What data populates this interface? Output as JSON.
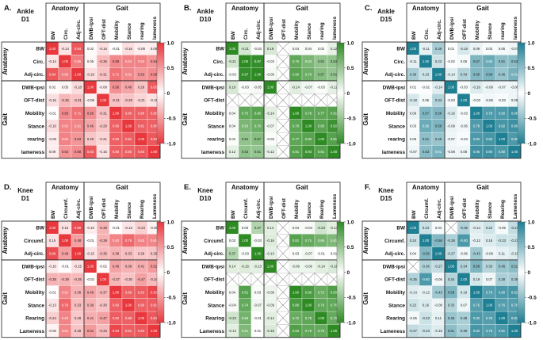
{
  "chart_data": [
    {
      "type": "heatmap",
      "panel_label": "A.",
      "title": [
        "Ankle",
        "D1"
      ],
      "palette": "red",
      "row_labels": [
        "BW",
        "Circ.",
        "Adj-circ.",
        "DWB-ipsi",
        "OFT-dist",
        "Mobility",
        "Stance",
        "rearing",
        "lameness"
      ],
      "col_labels": [
        "BW",
        "Circ.",
        "Adj-circ.",
        "DWB-ipsi",
        "OFT-dist",
        "Mobility",
        "Stance",
        "rearing",
        "lameness"
      ],
      "groups": [
        {
          "name": "Anatomy",
          "size": 3
        },
        {
          "name": "Gait",
          "size": 6
        }
      ],
      "matrix": [
        [
          1.0,
          -0.14,
          0.84,
          0.02,
          -0.16,
          -0.01,
          -0.16,
          -0.09,
          0.09
        ],
        [
          -0.14,
          1.0,
          0.65,
          0.05,
          -0.36,
          0.59,
          0.63,
          0.63,
          0.54
        ],
        [
          0.84,
          0.65,
          1.0,
          -0.18,
          -0.31,
          0.71,
          0.61,
          0.53,
          0.58
        ],
        [
          0.02,
          0.05,
          -0.18,
          1.0,
          -0.08,
          0.56,
          0.46,
          0.29,
          0.83
        ],
        [
          -0.16,
          -0.36,
          -0.31,
          -0.08,
          1.0,
          -0.31,
          -0.29,
          -0.21,
          -0.15
        ],
        [
          -0.01,
          0.59,
          0.71,
          0.56,
          -0.31,
          1.0,
          0.8,
          0.8,
          0.8
        ],
        [
          -0.16,
          0.63,
          0.61,
          0.46,
          -0.29,
          0.8,
          1.0,
          0.81,
          0.8
        ],
        [
          -0.09,
          0.63,
          0.53,
          0.29,
          -0.21,
          0.8,
          0.81,
          1.0,
          0.84
        ],
        [
          0.09,
          0.54,
          0.58,
          0.83,
          -0.15,
          0.8,
          0.8,
          0.84,
          1.0
        ]
      ],
      "colorbar": {
        "ticks": [
          1.0,
          0.5,
          0,
          -0.5,
          -1.0
        ],
        "tick_labels": [
          "1.0",
          "0.5",
          "0",
          "-0.5",
          "-1.0"
        ],
        "range": [
          -1.0,
          1.0
        ]
      }
    },
    {
      "type": "heatmap",
      "panel_label": "B.",
      "title": [
        "Ankle",
        "D10"
      ],
      "palette": "green",
      "row_labels": [
        "BW",
        "Circ.",
        "Adj-circ.",
        "DWB-ipsi",
        "OFT-dist",
        "Mobility",
        "Stance",
        "rearing",
        "lameness"
      ],
      "col_labels": [
        "BW",
        "Circ.",
        "Adj-circ.",
        "DWB-ipsi",
        "OFT-dist",
        "Mobility",
        "Stance",
        "rearing",
        "lameness"
      ],
      "groups": [
        {
          "name": "Anatomy",
          "size": 3
        },
        {
          "name": "Gait",
          "size": 6
        }
      ],
      "matrix": [
        [
          1.0,
          -0.21,
          -0.03,
          0.19,
          null,
          0.04,
          0.04,
          0.02,
          0.12
        ],
        [
          -0.21,
          1.0,
          0.97,
          -0.03,
          null,
          0.75,
          0.63,
          0.52,
          0.53
        ],
        [
          -0.03,
          0.97,
          1.0,
          -0.05,
          null,
          0.8,
          0.7,
          0.57,
          0.51
        ],
        [
          0.19,
          -0.03,
          -0.05,
          1.0,
          null,
          -0.14,
          -0.07,
          -0.03,
          -0.12
        ],
        [
          null,
          null,
          null,
          null,
          null,
          null,
          null,
          null,
          null
        ],
        [
          0.04,
          0.75,
          0.8,
          -0.14,
          null,
          1.0,
          0.78,
          0.77,
          0.81
        ],
        [
          0.04,
          0.63,
          0.7,
          -0.07,
          null,
          0.78,
          1.0,
          0.8,
          0.93
        ],
        [
          0.02,
          0.52,
          0.57,
          -0.03,
          null,
          0.77,
          0.8,
          1.0,
          0.81
        ],
        [
          0.12,
          0.53,
          0.51,
          -0.12,
          null,
          0.81,
          0.93,
          0.81,
          1.0
        ]
      ],
      "colorbar": {
        "ticks": [
          1.0,
          0.5,
          0,
          -0.5,
          -1.0
        ],
        "tick_labels": [
          "1.0",
          "0.5",
          "0",
          "-0.5",
          "-1.0"
        ],
        "range": [
          -1.0,
          1.0
        ]
      }
    },
    {
      "type": "heatmap",
      "panel_label": "C.",
      "title": [
        "Ankle",
        "D15"
      ],
      "palette": "teal",
      "row_labels": [
        "BW",
        "Circ.",
        "Adj-circ.",
        "DWB-ipsi",
        "OFT-dist",
        "Mobility",
        "Stance",
        "rearing",
        "lameness"
      ],
      "col_labels": [
        "BW",
        "Circ.",
        "Adj-circ.",
        "DWB-ipsi",
        "OFT-dist",
        "Mobility",
        "Stance",
        "rearing",
        "lameness"
      ],
      "groups": [
        {
          "name": "Anatomy",
          "size": 3
        },
        {
          "name": "Gait",
          "size": 6
        }
      ],
      "matrix": [
        [
          1.0,
          -0.11,
          0.39,
          0.01,
          -0.18,
          0.09,
          0.03,
          0.05,
          -0.07
        ],
        [
          -0.11,
          1.0,
          0.23,
          -0.02,
          0.05,
          0.57,
          0.66,
          0.51,
          0.53
        ],
        [
          0.39,
          0.23,
          1.0,
          -0.14,
          0.34,
          0.56,
          0.58,
          0.46,
          0.61
        ],
        [
          0.01,
          -0.02,
          -0.14,
          1.0,
          -0.03,
          -0.16,
          -0.09,
          -0.07,
          -0.08
        ],
        [
          -0.18,
          0.05,
          0.34,
          -0.03,
          1.0,
          -0.03,
          -0.06,
          -0.03,
          0.08
        ],
        [
          0.09,
          0.57,
          0.56,
          -0.16,
          -0.03,
          1.0,
          0.78,
          0.8,
          0.86
        ],
        [
          0.03,
          0.66,
          0.58,
          -0.09,
          -0.06,
          0.78,
          1.0,
          0.82,
          0.86
        ],
        [
          0.05,
          0.51,
          0.46,
          -0.07,
          -0.03,
          0.8,
          0.82,
          1.0,
          0.8
        ],
        [
          -0.07,
          0.53,
          0.61,
          -0.08,
          0.08,
          0.86,
          0.86,
          0.8,
          1.0
        ]
      ],
      "colorbar": {
        "ticks": [
          1.0,
          0.5,
          0,
          -0.5,
          -1.0
        ],
        "tick_labels": [
          "1.0",
          "0.5",
          "0",
          "-0.5",
          "-1.0"
        ],
        "range": [
          -1.0,
          1.0
        ]
      }
    },
    {
      "type": "heatmap",
      "panel_label": "D.",
      "title": [
        "Knee",
        "D1"
      ],
      "palette": "red",
      "row_labels": [
        "BW",
        "Circumf.",
        "Adj-circ.",
        "DWB-ipsi",
        "OFT-dist",
        "Mobility",
        "Stance",
        "Rearing",
        "Lameness"
      ],
      "col_labels": [
        "BW",
        "Circumf.",
        "Adj-circ.",
        "DWB-ipsi",
        "OFT-dist",
        "Mobility",
        "Stance",
        "Rearing",
        "Lameness"
      ],
      "groups": [
        {
          "name": "Anatomy",
          "size": 3
        },
        {
          "name": "Gait",
          "size": 6
        }
      ],
      "matrix": [
        [
          1.0,
          0.15,
          0.89,
          -0.1,
          -0.38,
          -0.01,
          -0.13,
          -0.24,
          -0.06
        ],
        [
          0.15,
          1.0,
          0.48,
          -0.01,
          -0.39,
          0.62,
          0.76,
          0.63,
          0.61
        ],
        [
          0.89,
          0.48,
          1.0,
          -0.15,
          -0.35,
          0.38,
          0.33,
          0.28,
          0.29
        ],
        [
          -0.1,
          -0.01,
          -0.15,
          1.0,
          -0.02,
          0.46,
          0.39,
          0.41,
          0.51
        ],
        [
          -0.38,
          -0.39,
          -0.35,
          -0.02,
          1.0,
          -0.37,
          -0.3,
          -0.47,
          -0.34
        ],
        [
          -0.01,
          0.62,
          0.38,
          0.46,
          -0.37,
          1.0,
          0.8,
          0.82,
          0.93
        ],
        [
          -0.13,
          0.76,
          0.33,
          0.39,
          -0.3,
          0.8,
          1.0,
          0.8,
          0.81
        ],
        [
          -0.24,
          0.63,
          0.28,
          0.41,
          -0.47,
          0.82,
          0.8,
          1.0,
          0.84
        ],
        [
          -0.06,
          0.61,
          0.29,
          0.51,
          -0.34,
          0.93,
          0.81,
          0.84,
          1.0
        ]
      ],
      "colorbar": {
        "ticks": [
          1.0,
          0.5,
          0,
          -0.5,
          -1.0
        ],
        "tick_labels": [
          "1.0",
          "0.5",
          "0",
          "-0.5",
          "-1.0"
        ],
        "range": [
          -1.0,
          1.0
        ]
      }
    },
    {
      "type": "heatmap",
      "panel_label": "E.",
      "title": [
        "Knee",
        "D10"
      ],
      "palette": "green",
      "row_labels": [
        "BW",
        "Circumf.",
        "Adj-circ.",
        "DWB-ipsi",
        "OFT-dist",
        "Mobility",
        "Stance",
        "Rearing",
        "Lameness"
      ],
      "col_labels": [
        "BW",
        "Circumf.",
        "Adj-circ.",
        "DWB-ipsi",
        "OFT-dist",
        "Mobility",
        "Stance",
        "Rearing",
        "Lameness"
      ],
      "groups": [
        {
          "name": "Anatomy",
          "size": 3
        },
        {
          "name": "Gait",
          "size": 6
        }
      ],
      "matrix": [
        [
          1.0,
          0.03,
          0.37,
          0.14,
          null,
          0.04,
          -0.04,
          -0.23,
          -0.14
        ],
        [
          0.03,
          1.0,
          -0.03,
          -0.16,
          null,
          0.81,
          0.74,
          0.66,
          0.61
        ],
        [
          0.37,
          -0.03,
          1.0,
          -0.13,
          null,
          0.03,
          -0.07,
          -0.01,
          0.01
        ],
        [
          0.14,
          -0.16,
          -0.13,
          1.0,
          null,
          -0.09,
          -0.09,
          -0.14,
          -0.18
        ],
        [
          null,
          null,
          null,
          null,
          null,
          null,
          null,
          null,
          null
        ],
        [
          0.04,
          0.81,
          0.03,
          -0.09,
          null,
          1.0,
          0.86,
          0.72,
          0.83
        ],
        [
          -0.04,
          0.74,
          -0.07,
          -0.09,
          null,
          0.86,
          1.0,
          0.76,
          0.76
        ],
        [
          -0.23,
          0.66,
          -0.01,
          -0.14,
          null,
          0.72,
          0.76,
          1.0,
          0.73
        ],
        [
          -0.14,
          0.61,
          0.01,
          -0.18,
          null,
          0.83,
          0.76,
          0.73,
          1.0
        ]
      ],
      "colorbar": {
        "ticks": [
          1.0,
          0.5,
          0,
          -0.5,
          -1.0
        ],
        "tick_labels": [
          "1.0",
          "0.5",
          "0",
          "-0.5",
          "-1.0"
        ],
        "range": [
          -1.0,
          1.0
        ]
      }
    },
    {
      "type": "heatmap",
      "panel_label": "F.",
      "title": [
        "Knee",
        "D15"
      ],
      "palette": "teal",
      "row_labels": [
        "BW",
        "Circumf.",
        "Adj-circ.",
        "DWB-ipsi",
        "OFT-dist",
        "Mobility",
        "Stance",
        "Rearing",
        "Lameness"
      ],
      "col_labels": [
        "BW",
        "Circumf.",
        "Adj-circ.",
        "DWB-ipsi",
        "OFT-dist",
        "Mobility",
        "Stance",
        "Rearing",
        "Lameness"
      ],
      "groups": [
        {
          "name": "Anatomy",
          "size": 3
        },
        {
          "name": "Gait",
          "size": 6
        }
      ],
      "matrix": [
        [
          1.0,
          0.24,
          0.04,
          null,
          -0.35,
          -0.14,
          0.22,
          -0.05,
          -0.27
        ],
        [
          0.24,
          1.0,
          -0.56,
          -0.36,
          -0.8,
          -0.12,
          0.16,
          -0.23,
          -0.23
        ],
        [
          0.04,
          -0.56,
          1.0,
          -0.27,
          -0.06,
          -0.43,
          -0.08,
          0.11,
          -0.15
        ],
        [
          null,
          -0.36,
          -0.27,
          1.0,
          0.34,
          0.58,
          0.33,
          0.46,
          0.51
        ],
        [
          -0.35,
          -0.8,
          -0.06,
          0.34,
          1.0,
          0.19,
          0.07,
          0.38,
          0.39
        ],
        [
          -0.14,
          -0.12,
          -0.43,
          0.58,
          0.19,
          1.0,
          0.76,
          0.8,
          0.82
        ],
        [
          0.22,
          0.16,
          -0.08,
          0.33,
          0.07,
          0.76,
          1.0,
          0.76,
          0.76
        ],
        [
          -0.05,
          -0.23,
          0.11,
          0.46,
          0.38,
          0.8,
          0.76,
          1.0,
          0.81
        ],
        [
          -0.27,
          -0.23,
          -0.15,
          0.51,
          0.39,
          0.82,
          0.76,
          0.81,
          1.0
        ]
      ],
      "colorbar": {
        "ticks": [
          1.0,
          0.5,
          0,
          -0.5,
          -1.0
        ],
        "tick_labels": [
          "1.0",
          "0.5",
          "0",
          "-0.5",
          "-1.0"
        ],
        "range": [
          -1.0,
          1.0
        ]
      }
    }
  ],
  "colors": {
    "red": "#e8383d",
    "green": "#2e8b24",
    "teal": "#1f7f93",
    "line": "#222222",
    "text": "#111111"
  }
}
